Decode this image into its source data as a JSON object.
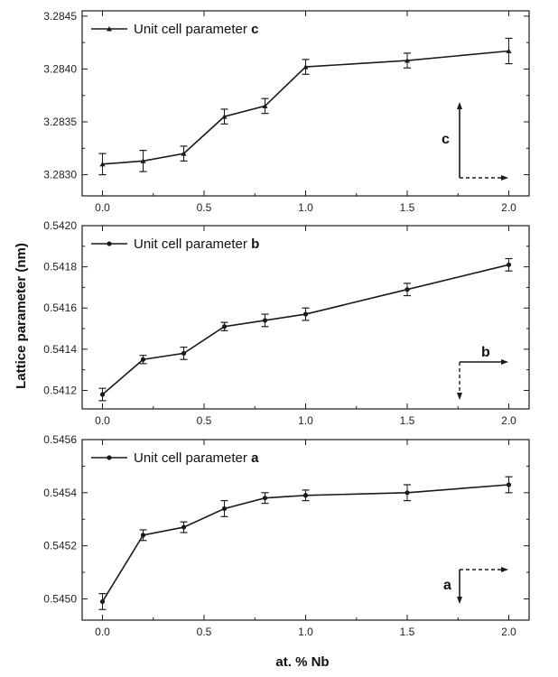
{
  "chart_data": [
    {
      "type": "line",
      "legend": {
        "label": "Unit cell parameter",
        "param": "c",
        "position": "top-left"
      },
      "xlim": [
        -0.1,
        2.1
      ],
      "ylim": [
        3.2828,
        3.28455
      ],
      "xticks": [
        "0.0",
        "0.5",
        "1.0",
        "1.5",
        "2.0"
      ],
      "yticks": [
        "3.2830",
        "3.2835",
        "3.2840",
        "3.2845"
      ],
      "x": [
        0.0,
        0.2,
        0.4,
        0.6,
        0.8,
        1.0,
        1.5,
        2.0
      ],
      "y": [
        3.2831,
        3.28313,
        3.2832,
        3.28355,
        3.28365,
        3.28402,
        3.28408,
        3.28417
      ],
      "err": [
        0.0001,
        0.0001,
        7e-05,
        7e-05,
        7e-05,
        7e-05,
        7e-05,
        0.00012
      ],
      "inset": {
        "label": "c",
        "solid": "up",
        "dashed": "right"
      }
    },
    {
      "type": "line",
      "legend": {
        "label": "Unit cell parameter",
        "param": "b",
        "position": "top-left"
      },
      "xlim": [
        -0.1,
        2.1
      ],
      "ylim": [
        0.54111,
        0.542
      ],
      "xticks": [
        "0.0",
        "0.5",
        "1.0",
        "1.5",
        "2.0"
      ],
      "yticks": [
        "0.5412",
        "0.5414",
        "0.5416",
        "0.5418",
        "0.5420"
      ],
      "x": [
        0.0,
        0.2,
        0.4,
        0.6,
        0.8,
        1.0,
        1.5,
        2.0
      ],
      "y": [
        0.54118,
        0.54135,
        0.54138,
        0.54151,
        0.54154,
        0.54157,
        0.54169,
        0.54181
      ],
      "err": [
        3e-05,
        2e-05,
        3e-05,
        2e-05,
        3e-05,
        3e-05,
        3e-05,
        3e-05
      ],
      "inset": {
        "label": "b",
        "solid": "right",
        "dashed": "down"
      }
    },
    {
      "type": "line",
      "legend": {
        "label": "Unit cell parameter",
        "param": "a",
        "position": "top-left"
      },
      "xlim": [
        -0.1,
        2.1
      ],
      "ylim": [
        0.54492,
        0.5456
      ],
      "xticks": [
        "0.0",
        "0.5",
        "1.0",
        "1.5",
        "2.0"
      ],
      "yticks": [
        "0.5450",
        "0.5452",
        "0.5454",
        "0.5456"
      ],
      "x": [
        0.0,
        0.2,
        0.4,
        0.6,
        0.8,
        1.0,
        1.5,
        2.0
      ],
      "y": [
        0.54499,
        0.54524,
        0.54527,
        0.54534,
        0.54538,
        0.54539,
        0.5454,
        0.54543
      ],
      "err": [
        3e-05,
        2e-05,
        2e-05,
        3e-05,
        2e-05,
        2e-05,
        3e-05,
        3e-05
      ],
      "inset": {
        "label": "a",
        "solid": "down",
        "dashed": "right"
      }
    }
  ],
  "labels": {
    "ylabel": "Lattice parameter (nm)",
    "xlabel": "at. % Nb"
  },
  "colors": {
    "line": "#1a1a1a",
    "background": "#ffffff"
  }
}
